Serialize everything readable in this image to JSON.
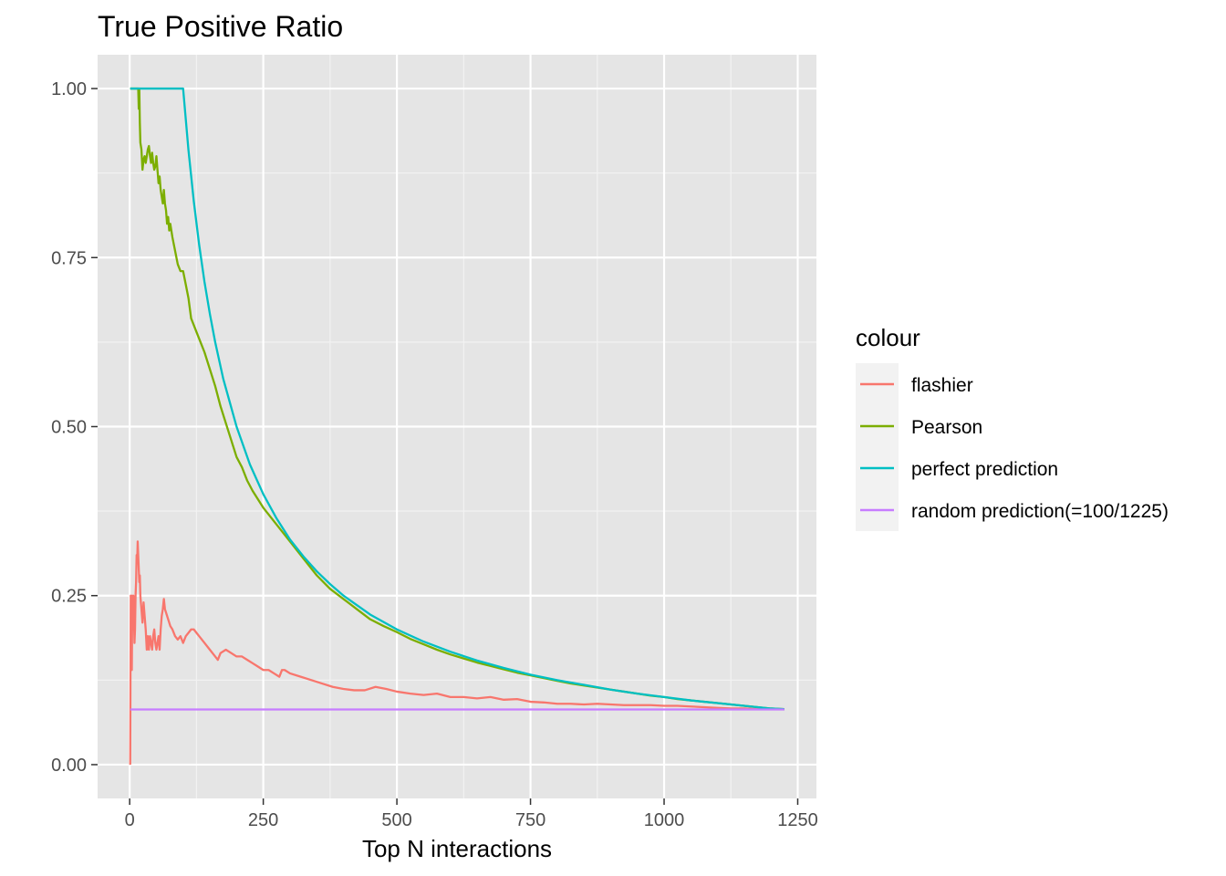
{
  "chart_data": {
    "type": "line",
    "title": "True Positive Ratio",
    "xlabel": "Top N interactions",
    "ylabel": "",
    "xlim": [
      -60,
      1285
    ],
    "ylim": [
      -0.05,
      1.05
    ],
    "x_ticks": [
      0,
      250,
      500,
      750,
      1000,
      1250
    ],
    "x_tick_labels": [
      "0",
      "250",
      "500",
      "750",
      "1000",
      "1250"
    ],
    "y_ticks": [
      0,
      0.25,
      0.5,
      0.75,
      1.0
    ],
    "y_tick_labels": [
      "0.00",
      "0.25",
      "0.50",
      "0.75",
      "1.00"
    ],
    "grid": true,
    "background": "#e5e5e5",
    "legend": {
      "title": "colour",
      "position": "right"
    },
    "series": [
      {
        "name": "flashier",
        "color": "#f8766d",
        "points": [
          [
            1,
            0
          ],
          [
            2,
            0.25
          ],
          [
            3,
            0.25
          ],
          [
            4,
            0.14
          ],
          [
            5,
            0.25
          ],
          [
            6,
            0.2
          ],
          [
            7,
            0.25
          ],
          [
            8,
            0.22
          ],
          [
            9,
            0.18
          ],
          [
            10,
            0.2
          ],
          [
            11,
            0.25
          ],
          [
            12,
            0.27
          ],
          [
            13,
            0.31
          ],
          [
            14,
            0.3
          ],
          [
            15,
            0.33
          ],
          [
            16,
            0.31
          ],
          [
            17,
            0.29
          ],
          [
            18,
            0.27
          ],
          [
            19,
            0.28
          ],
          [
            20,
            0.25
          ],
          [
            22,
            0.23
          ],
          [
            24,
            0.21
          ],
          [
            26,
            0.24
          ],
          [
            28,
            0.22
          ],
          [
            30,
            0.2
          ],
          [
            32,
            0.17
          ],
          [
            34,
            0.19
          ],
          [
            36,
            0.17
          ],
          [
            38,
            0.19
          ],
          [
            40,
            0.18
          ],
          [
            42,
            0.17
          ],
          [
            44,
            0.19
          ],
          [
            46,
            0.2
          ],
          [
            48,
            0.18
          ],
          [
            50,
            0.17
          ],
          [
            52,
            0.18
          ],
          [
            54,
            0.19
          ],
          [
            56,
            0.17
          ],
          [
            58,
            0.2
          ],
          [
            60,
            0.22
          ],
          [
            62,
            0.23
          ],
          [
            64,
            0.245
          ],
          [
            66,
            0.23
          ],
          [
            68,
            0.225
          ],
          [
            72,
            0.215
          ],
          [
            76,
            0.205
          ],
          [
            80,
            0.2
          ],
          [
            85,
            0.19
          ],
          [
            90,
            0.185
          ],
          [
            95,
            0.19
          ],
          [
            100,
            0.18
          ],
          [
            105,
            0.19
          ],
          [
            110,
            0.195
          ],
          [
            115,
            0.2
          ],
          [
            120,
            0.2
          ],
          [
            125,
            0.195
          ],
          [
            130,
            0.19
          ],
          [
            140,
            0.18
          ],
          [
            150,
            0.17
          ],
          [
            160,
            0.16
          ],
          [
            165,
            0.155
          ],
          [
            170,
            0.165
          ],
          [
            180,
            0.17
          ],
          [
            190,
            0.165
          ],
          [
            200,
            0.16
          ],
          [
            210,
            0.16
          ],
          [
            220,
            0.155
          ],
          [
            230,
            0.15
          ],
          [
            240,
            0.145
          ],
          [
            250,
            0.14
          ],
          [
            260,
            0.14
          ],
          [
            270,
            0.135
          ],
          [
            280,
            0.13
          ],
          [
            285,
            0.14
          ],
          [
            290,
            0.14
          ],
          [
            300,
            0.135
          ],
          [
            320,
            0.13
          ],
          [
            340,
            0.125
          ],
          [
            360,
            0.12
          ],
          [
            380,
            0.115
          ],
          [
            400,
            0.112
          ],
          [
            420,
            0.11
          ],
          [
            440,
            0.11
          ],
          [
            460,
            0.115
          ],
          [
            480,
            0.112
          ],
          [
            500,
            0.108
          ],
          [
            525,
            0.105
          ],
          [
            550,
            0.103
          ],
          [
            575,
            0.105
          ],
          [
            600,
            0.1
          ],
          [
            625,
            0.1
          ],
          [
            650,
            0.098
          ],
          [
            675,
            0.1
          ],
          [
            700,
            0.096
          ],
          [
            725,
            0.097
          ],
          [
            750,
            0.093
          ],
          [
            775,
            0.092
          ],
          [
            800,
            0.09
          ],
          [
            825,
            0.09
          ],
          [
            850,
            0.089
          ],
          [
            875,
            0.09
          ],
          [
            900,
            0.089
          ],
          [
            925,
            0.088
          ],
          [
            950,
            0.088
          ],
          [
            975,
            0.088
          ],
          [
            1000,
            0.087
          ],
          [
            1025,
            0.087
          ],
          [
            1050,
            0.086
          ],
          [
            1075,
            0.085
          ],
          [
            1100,
            0.084
          ],
          [
            1125,
            0.083
          ],
          [
            1150,
            0.083
          ],
          [
            1175,
            0.082
          ],
          [
            1200,
            0.082
          ],
          [
            1225,
            0.082
          ]
        ]
      },
      {
        "name": "Pearson",
        "color": "#7cae00",
        "points": [
          [
            1,
            1
          ],
          [
            10,
            1
          ],
          [
            16,
            1
          ],
          [
            17,
            0.97
          ],
          [
            18,
            1
          ],
          [
            19,
            0.95
          ],
          [
            20,
            0.92
          ],
          [
            22,
            0.91
          ],
          [
            24,
            0.88
          ],
          [
            26,
            0.895
          ],
          [
            28,
            0.9
          ],
          [
            30,
            0.89
          ],
          [
            32,
            0.9
          ],
          [
            34,
            0.91
          ],
          [
            36,
            0.915
          ],
          [
            38,
            0.9
          ],
          [
            40,
            0.89
          ],
          [
            42,
            0.905
          ],
          [
            44,
            0.89
          ],
          [
            46,
            0.88
          ],
          [
            48,
            0.885
          ],
          [
            50,
            0.9
          ],
          [
            52,
            0.88
          ],
          [
            54,
            0.86
          ],
          [
            56,
            0.87
          ],
          [
            58,
            0.85
          ],
          [
            60,
            0.84
          ],
          [
            62,
            0.83
          ],
          [
            64,
            0.85
          ],
          [
            66,
            0.83
          ],
          [
            68,
            0.82
          ],
          [
            70,
            0.8
          ],
          [
            72,
            0.81
          ],
          [
            74,
            0.79
          ],
          [
            76,
            0.8
          ],
          [
            78,
            0.79
          ],
          [
            80,
            0.78
          ],
          [
            85,
            0.76
          ],
          [
            90,
            0.74
          ],
          [
            95,
            0.73
          ],
          [
            100,
            0.73
          ],
          [
            105,
            0.71
          ],
          [
            110,
            0.69
          ],
          [
            115,
            0.66
          ],
          [
            120,
            0.65
          ],
          [
            125,
            0.64
          ],
          [
            130,
            0.63
          ],
          [
            140,
            0.61
          ],
          [
            150,
            0.585
          ],
          [
            160,
            0.56
          ],
          [
            170,
            0.53
          ],
          [
            180,
            0.505
          ],
          [
            190,
            0.48
          ],
          [
            200,
            0.455
          ],
          [
            210,
            0.44
          ],
          [
            220,
            0.42
          ],
          [
            230,
            0.405
          ],
          [
            250,
            0.38
          ],
          [
            275,
            0.355
          ],
          [
            300,
            0.33
          ],
          [
            325,
            0.305
          ],
          [
            350,
            0.28
          ],
          [
            375,
            0.26
          ],
          [
            400,
            0.245
          ],
          [
            425,
            0.23
          ],
          [
            450,
            0.215
          ],
          [
            475,
            0.205
          ],
          [
            500,
            0.196
          ],
          [
            525,
            0.186
          ],
          [
            550,
            0.178
          ],
          [
            575,
            0.17
          ],
          [
            600,
            0.163
          ],
          [
            625,
            0.157
          ],
          [
            650,
            0.151
          ],
          [
            675,
            0.146
          ],
          [
            700,
            0.141
          ],
          [
            725,
            0.136
          ],
          [
            750,
            0.132
          ],
          [
            775,
            0.128
          ],
          [
            800,
            0.124
          ],
          [
            825,
            0.12
          ],
          [
            850,
            0.117
          ],
          [
            875,
            0.114
          ],
          [
            900,
            0.111
          ],
          [
            925,
            0.108
          ],
          [
            950,
            0.105
          ],
          [
            975,
            0.102
          ],
          [
            1000,
            0.1
          ],
          [
            1025,
            0.097
          ],
          [
            1050,
            0.095
          ],
          [
            1075,
            0.093
          ],
          [
            1100,
            0.091
          ],
          [
            1125,
            0.089
          ],
          [
            1150,
            0.087
          ],
          [
            1175,
            0.085
          ],
          [
            1200,
            0.083
          ],
          [
            1225,
            0.082
          ]
        ]
      },
      {
        "name": "perfect prediction",
        "color": "#00bfc4",
        "points": [
          [
            1,
            1
          ],
          [
            100,
            1
          ],
          [
            110,
            0.909
          ],
          [
            120,
            0.833
          ],
          [
            130,
            0.769
          ],
          [
            140,
            0.714
          ],
          [
            150,
            0.667
          ],
          [
            160,
            0.625
          ],
          [
            175,
            0.571
          ],
          [
            200,
            0.5
          ],
          [
            225,
            0.444
          ],
          [
            250,
            0.4
          ],
          [
            275,
            0.364
          ],
          [
            300,
            0.333
          ],
          [
            325,
            0.308
          ],
          [
            350,
            0.286
          ],
          [
            375,
            0.267
          ],
          [
            400,
            0.25
          ],
          [
            450,
            0.222
          ],
          [
            500,
            0.2
          ],
          [
            550,
            0.182
          ],
          [
            600,
            0.167
          ],
          [
            650,
            0.154
          ],
          [
            700,
            0.143
          ],
          [
            750,
            0.133
          ],
          [
            800,
            0.125
          ],
          [
            850,
            0.118
          ],
          [
            900,
            0.111
          ],
          [
            950,
            0.105
          ],
          [
            1000,
            0.1
          ],
          [
            1050,
            0.095
          ],
          [
            1100,
            0.091
          ],
          [
            1150,
            0.087
          ],
          [
            1200,
            0.083
          ],
          [
            1225,
            0.082
          ]
        ]
      },
      {
        "name": "random prediction(=100/1225)",
        "color": "#c77cff",
        "points": [
          [
            1,
            0.0816
          ],
          [
            1225,
            0.0816
          ]
        ]
      }
    ]
  }
}
